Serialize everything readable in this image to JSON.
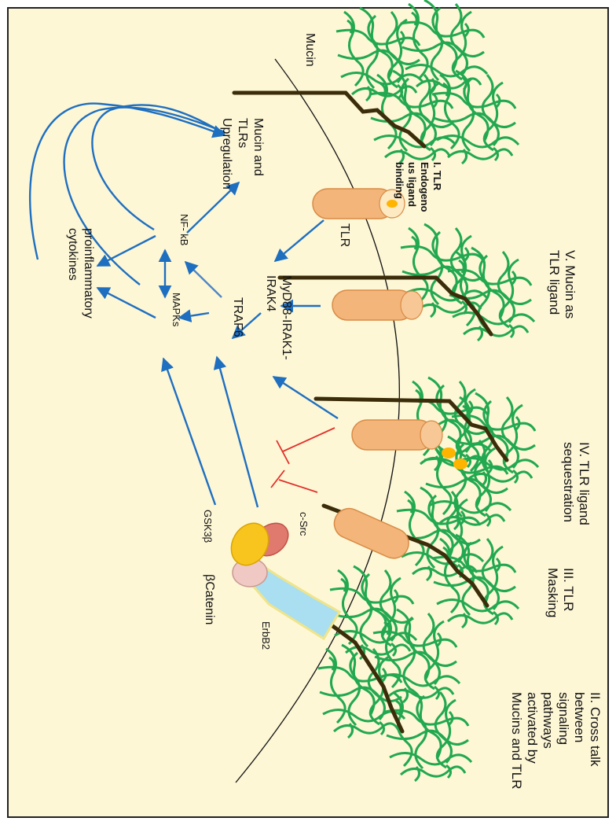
{
  "colors": {
    "background": "#fdf7d6",
    "border": "#222222",
    "blue_arrow": "#1f6fc0",
    "inhibitor": "#e2302a",
    "mucin_green": "#22a84f",
    "mucin_core": "#3b2d0a",
    "tlr_fill": "#f3b57a",
    "tlr_stroke": "#d98b45",
    "ligand": "#ffb400",
    "csrc": "#e07a6e",
    "gsk3b": "#f7c51e",
    "bcatenin": "#f1c9c4",
    "erbb2": "#a9dff0"
  },
  "labels": {
    "mucin": "Mucin",
    "upregulation": [
      "Mucin  and",
      "TLRs",
      "Upregulation"
    ],
    "tlr": "TLR",
    "myd88": [
      "MyD88-IRAK1-",
      "IRAK4"
    ],
    "traf6": "TRAF6",
    "nfkb": "NF- kB",
    "mapks": "MAPKs",
    "cytokines": [
      "proinflammatory",
      "cytokines"
    ],
    "csrc": "c-Src",
    "gsk3b": "GSK3β",
    "bcatenin": "βCatenin",
    "erbb2": "ErbB2"
  },
  "mechanisms": {
    "m1": [
      "I. TLR",
      "Endogeno",
      "us ligand",
      "binding"
    ],
    "m5": [
      "V. Mucin  as",
      "TLR ligand"
    ],
    "m4": [
      "IV. TLR ligand",
      "sequestration"
    ],
    "m3": [
      "III. TLR",
      "Masking"
    ],
    "m2": [
      "II. Cross talk",
      "between",
      "signaling",
      "pathways",
      "activated by",
      "Mucins and TLR"
    ]
  }
}
